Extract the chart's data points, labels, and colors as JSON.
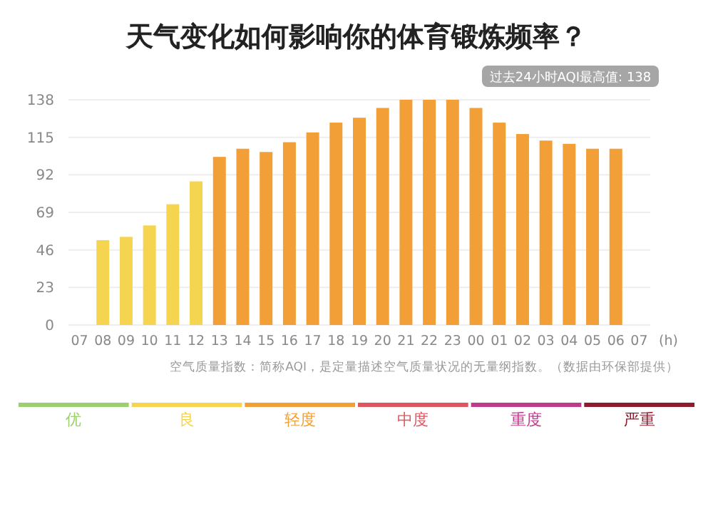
{
  "chart_data": {
    "type": "bar",
    "title": "天气变化如何影响你的体育锻炼频率？",
    "xlabel": "(h)",
    "categories": [
      "07",
      "08",
      "09",
      "10",
      "11",
      "12",
      "13",
      "14",
      "15",
      "16",
      "17",
      "18",
      "19",
      "20",
      "21",
      "22",
      "23",
      "00",
      "01",
      "02",
      "03",
      "04",
      "05",
      "06",
      "07"
    ],
    "series": [
      {
        "name": "优",
        "color": "#9ccf6e",
        "values": [
          null,
          null,
          null,
          null,
          null,
          null,
          null,
          null,
          null,
          null,
          null,
          null,
          null,
          null,
          null,
          null,
          null,
          null,
          null,
          null,
          null,
          null,
          null,
          null,
          null
        ]
      },
      {
        "name": "良",
        "color": "#f5d54f",
        "values": [
          null,
          52,
          54,
          61,
          74,
          88,
          null,
          null,
          null,
          null,
          null,
          null,
          null,
          null,
          null,
          null,
          null,
          null,
          null,
          null,
          null,
          null,
          null,
          null,
          null
        ]
      },
      {
        "name": "轻度",
        "color": "#f29f38",
        "values": [
          null,
          null,
          null,
          null,
          null,
          null,
          103,
          108,
          106,
          112,
          118,
          124,
          127,
          133,
          138,
          138,
          138,
          133,
          124,
          117,
          113,
          111,
          108,
          108,
          null
        ]
      },
      {
        "name": "中度",
        "color": "#e0565f",
        "values": [
          null,
          null,
          null,
          null,
          null,
          null,
          null,
          null,
          null,
          null,
          null,
          null,
          null,
          null,
          null,
          null,
          null,
          null,
          null,
          null,
          null,
          null,
          null,
          null,
          null
        ]
      },
      {
        "name": "重度",
        "color": "#c0398a",
        "values": [
          null,
          null,
          null,
          null,
          null,
          null,
          null,
          null,
          null,
          null,
          null,
          null,
          null,
          null,
          null,
          null,
          null,
          null,
          null,
          null,
          null,
          null,
          null,
          null,
          null
        ]
      },
      {
        "name": "严重",
        "color": "#8e1b2e",
        "values": [
          null,
          null,
          null,
          null,
          null,
          null,
          null,
          null,
          null,
          null,
          null,
          null,
          null,
          null,
          null,
          null,
          null,
          null,
          null,
          null,
          null,
          null,
          null,
          null,
          null
        ]
      }
    ],
    "ylim": [
      0,
      138
    ],
    "yticks": [
      0,
      23,
      46,
      69,
      92,
      115,
      138
    ],
    "grid": "y",
    "legend": "bottom",
    "annotations": [
      "过去24小时AQI最高值: 138",
      "空气质量指数：简称AQI，是定量描述空气质量状况的无量纲指数。（数据由环保部提供）"
    ]
  }
}
